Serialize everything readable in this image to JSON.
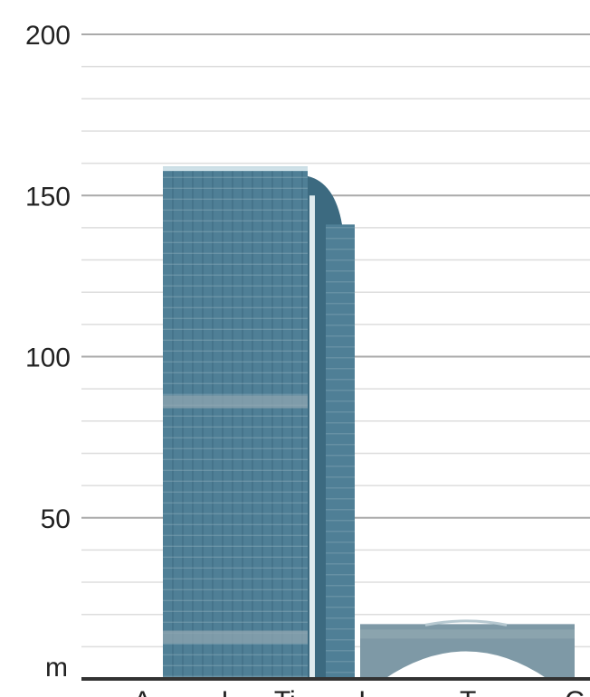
{
  "unit_label": "m",
  "scale": {
    "ticks": [
      {
        "value": 0,
        "label": ""
      },
      {
        "value": 50,
        "label": "50"
      },
      {
        "value": 100,
        "label": "100"
      },
      {
        "value": 150,
        "label": "150"
      },
      {
        "value": 200,
        "label": "200"
      }
    ],
    "minor_step": 10,
    "range": [
      0,
      200
    ]
  },
  "structures": [
    {
      "id": "main-tower",
      "height": 159
    },
    {
      "id": "side-tower",
      "height": 141
    },
    {
      "id": "podium",
      "height": 17
    }
  ],
  "colors": {
    "glass": "#4f7f96",
    "glass_dark": "#3c6a80",
    "grid_line": "#9bb6c3",
    "band": "#8fa6b0",
    "podium": "#7e99a6",
    "ground": "#333333",
    "major_grid": "#aaaaaa",
    "minor_grid": "#dddddd"
  },
  "bottom_labels": [
    {
      "text": "A",
      "pos": 0.12
    },
    {
      "text": "L",
      "pos": 0.29
    },
    {
      "text": "Ti",
      "pos": 0.4
    },
    {
      "text": "L",
      "pos": 0.56
    },
    {
      "text": "T",
      "pos": 0.76
    },
    {
      "text": "C",
      "pos": 0.97
    }
  ]
}
